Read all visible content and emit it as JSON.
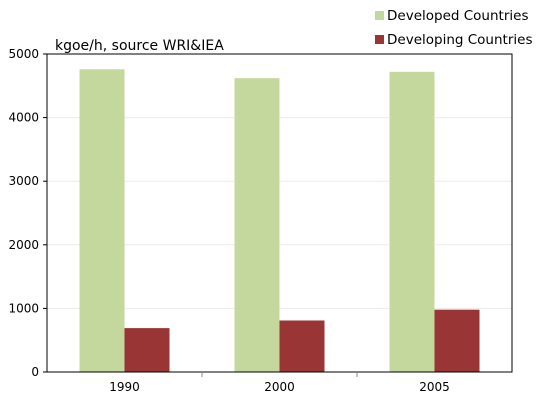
{
  "chart_data": {
    "type": "bar",
    "title": "",
    "unit_label": "kgoe/h, source WRI&IEA",
    "xlabel": "",
    "ylabel": "",
    "categories": [
      "1990",
      "2000",
      "2005"
    ],
    "series": [
      {
        "name": "Developed Countries",
        "color": "#c4d89e",
        "values": [
          4760,
          4620,
          4720
        ]
      },
      {
        "name": "Developing Countries",
        "color": "#993535",
        "values": [
          690,
          810,
          980
        ]
      }
    ],
    "ylim": [
      0,
      5000
    ],
    "yticks": [
      "0",
      "1000",
      "2000",
      "3000",
      "4000",
      "5000"
    ],
    "grid": true,
    "legend_position": "top-right"
  }
}
